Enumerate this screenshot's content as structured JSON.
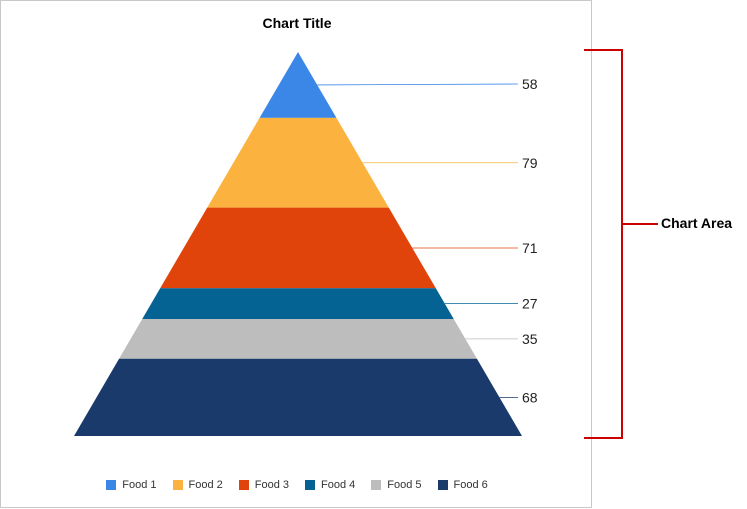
{
  "chart_data": {
    "type": "pyramid",
    "title": "Chart Title",
    "categories": [
      "Food 1",
      "Food 2",
      "Food 3",
      "Food 4",
      "Food 5",
      "Food 6"
    ],
    "values": [
      58,
      79,
      71,
      27,
      35,
      68
    ],
    "colors": [
      "#3b87e8",
      "#fbb23e",
      "#e1440a",
      "#046393",
      "#bdbdbd",
      "#193a6a"
    ],
    "legend_position": "bottom"
  },
  "annotation": {
    "label": "Chart Area",
    "color": "#cc0000"
  }
}
